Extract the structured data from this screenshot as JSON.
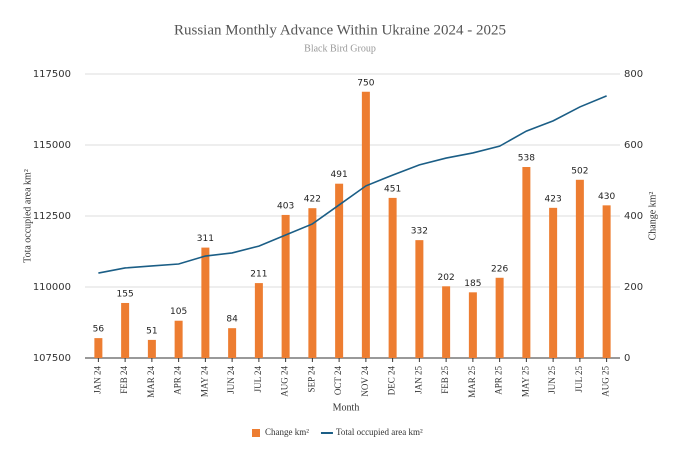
{
  "chart_data": {
    "type": "bar",
    "title": "Russian Monthly Advance Within Ukraine 2024 - 2025",
    "subtitle": "Black Bird Group",
    "x_label": "Month",
    "y_label": "Tota occupied area km²",
    "y2_label": "Change km²",
    "categories": [
      "JAN 24",
      "FEB 24",
      "MAR 24",
      "APR 24",
      "MAY 24",
      "JUN 24",
      "JUL 24",
      "AUG 24",
      "SEP 24",
      "OCT 24",
      "NOV 24",
      "DEC 24",
      "JAN 25",
      "FEB 25",
      "MAR 25",
      "APR 25",
      "MAY 25",
      "JUN 25",
      "JUL 25",
      "AUG 25"
    ],
    "series": [
      {
        "name": "Change km²",
        "type": "bar",
        "axis": "y2",
        "color": "#ed7d31",
        "values": [
          56,
          155,
          51,
          105,
          311,
          84,
          211,
          403,
          422,
          491,
          750,
          451,
          332,
          202,
          185,
          226,
          538,
          423,
          502,
          430
        ]
      },
      {
        "name": "Total occupied area km²",
        "type": "line",
        "axis": "y",
        "color": "#1b5e86",
        "values": [
          110490,
          110670,
          110740,
          110810,
          111090,
          111200,
          111440,
          111830,
          112220,
          112890,
          113560,
          113940,
          114300,
          114540,
          114720,
          114960,
          115490,
          115850,
          116340,
          116730
        ]
      }
    ],
    "ylim": [
      107500,
      117500
    ],
    "yticks": [
      107500,
      110000,
      112500,
      115000,
      117500
    ],
    "y2lim": [
      0,
      800
    ],
    "y2ticks": [
      0,
      200,
      400,
      600,
      800
    ],
    "legend": "bottom"
  }
}
